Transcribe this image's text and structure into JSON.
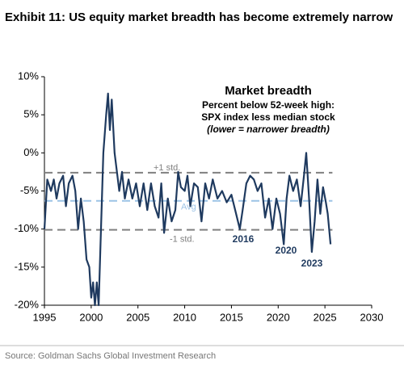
{
  "chart_data": {
    "type": "line",
    "title": "Exhibit 11: US equity market breadth has become extremely narrow",
    "box_title": "Market breadth",
    "box_lines": [
      "Percent below 52-week high:",
      "SPX index less median stock",
      "(lower = narrower breadth)"
    ],
    "source": "Source: Goldman Sachs Global Investment Research",
    "color": "#1f3a5f",
    "x": [
      1995.0,
      1995.3,
      1995.7,
      1996.0,
      1996.3,
      1996.6,
      1997.0,
      1997.3,
      1997.6,
      1998.0,
      1998.3,
      1998.6,
      1998.9,
      1999.2,
      1999.5,
      1999.8,
      2000.0,
      2000.2,
      2000.4,
      2000.6,
      2000.8,
      2001.0,
      2001.3,
      2001.6,
      2001.8,
      2002.0,
      2002.2,
      2002.5,
      2002.8,
      2003.0,
      2003.3,
      2003.6,
      2004.0,
      2004.4,
      2004.8,
      2005.2,
      2005.6,
      2006.0,
      2006.4,
      2006.8,
      2007.2,
      2007.5,
      2007.8,
      2008.2,
      2008.6,
      2009.0,
      2009.3,
      2009.6,
      2010.0,
      2010.3,
      2010.6,
      2011.0,
      2011.4,
      2011.8,
      2012.2,
      2012.6,
      2013.0,
      2013.5,
      2014.0,
      2014.5,
      2015.0,
      2015.5,
      2015.9,
      2016.2,
      2016.6,
      2017.0,
      2017.4,
      2017.8,
      2018.2,
      2018.6,
      2019.0,
      2019.4,
      2019.8,
      2020.2,
      2020.6,
      2020.9,
      2021.2,
      2021.6,
      2022.0,
      2022.4,
      2022.8,
      2023.0,
      2023.3,
      2023.6,
      2023.9,
      2024.2,
      2024.5,
      2024.8,
      2025.1,
      2025.3,
      2025.6
    ],
    "values": [
      -10,
      -3.5,
      -5,
      -3.5,
      -6,
      -4,
      -3,
      -7,
      -4,
      -3,
      -5,
      -10,
      -6,
      -9,
      -14,
      -15,
      -19,
      -17,
      -20,
      -17,
      -20,
      -12,
      0,
      5,
      7.8,
      3,
      7,
      0,
      -3,
      -5,
      -2.5,
      -6,
      -3.5,
      -6,
      -4,
      -7,
      -4,
      -7.5,
      -4,
      -7,
      -8.5,
      -4,
      -10.5,
      -6,
      -9,
      -7.5,
      -2.5,
      -4.5,
      -5,
      -3,
      -7,
      -4,
      -4.5,
      -9,
      -4,
      -6,
      -3.5,
      -6,
      -5,
      -6.5,
      -5.5,
      -8,
      -10,
      -7.5,
      -4,
      -3,
      -3.5,
      -5,
      -4,
      -8.5,
      -6,
      -10,
      -6,
      -8,
      -12,
      -6,
      -3,
      -5,
      -3.5,
      -7,
      -2.5,
      0,
      -6,
      -13,
      -9,
      -3.5,
      -8,
      -4.5,
      -6.5,
      -8,
      -12
    ],
    "reference_lines": [
      {
        "label": "+1 std.",
        "value": -2.6,
        "color": "#808080"
      },
      {
        "label": "Avg",
        "value": -6.3,
        "color": "#9cc3e6"
      },
      {
        "label": "-1 std.",
        "value": -10.1,
        "color": "#808080"
      }
    ],
    "annotations": [
      "2016",
      "2020",
      "2023"
    ],
    "xlim": [
      1995,
      2030
    ],
    "xticks": [
      1995,
      2000,
      2005,
      2010,
      2015,
      2020,
      2025,
      2030
    ],
    "ylim": [
      -20,
      10
    ],
    "yticks": [
      {
        "value": 10,
        "label": "10%"
      },
      {
        "value": 5,
        "label": "5%"
      },
      {
        "value": 0,
        "label": "0%"
      },
      {
        "value": -5,
        "label": "-5%"
      },
      {
        "value": -10,
        "label": "-10%"
      },
      {
        "value": -15,
        "label": "-15%"
      },
      {
        "value": -20,
        "label": "-20%"
      }
    ]
  }
}
